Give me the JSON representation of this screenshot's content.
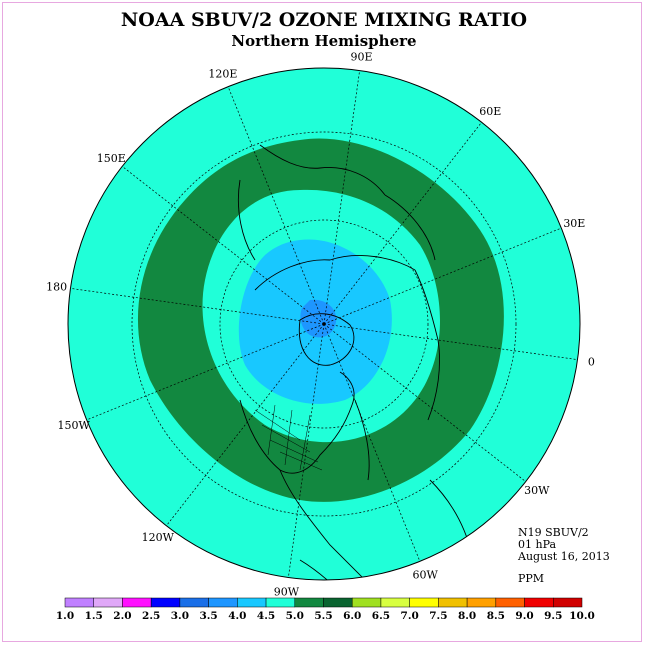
{
  "header": {
    "title": "NOAA SBUV/2 OZONE MIXING RATIO",
    "subtitle": "Northern Hemisphere"
  },
  "longitude_labels": [
    {
      "text": "90E",
      "lon": 90
    },
    {
      "text": "60E",
      "lon": 60
    },
    {
      "text": "30E",
      "lon": 30
    },
    {
      "text": "0",
      "lon": 0
    },
    {
      "text": "30W",
      "lon": -30
    },
    {
      "text": "60W",
      "lon": -60
    },
    {
      "text": "90W",
      "lon": -90
    },
    {
      "text": "120W",
      "lon": -120
    },
    {
      "text": "150W",
      "lon": -150
    },
    {
      "text": "180",
      "lon": 180
    },
    {
      "text": "150E",
      "lon": 150
    },
    {
      "text": "120E",
      "lon": 120
    }
  ],
  "info": {
    "instrument": "N19 SBUV/2",
    "level": "01 hPa",
    "date": "August 16, 2013",
    "units": "PPM"
  },
  "colorbar": {
    "ticks": [
      "1.0",
      "1.5",
      "2.0",
      "2.5",
      "3.0",
      "3.5",
      "4.0",
      "4.5",
      "5.0",
      "5.5",
      "6.0",
      "6.5",
      "7.0",
      "7.5",
      "8.0",
      "8.5",
      "9.0",
      "9.5",
      "10.0"
    ],
    "colors": [
      "#c080ff",
      "#e0a8f8",
      "#ff10ff",
      "#0000ff",
      "#1a6fe8",
      "#1e96ff",
      "#18c8ff",
      "#20ffd8",
      "#128840",
      "#0a6430",
      "#a0e020",
      "#d8ff40",
      "#ffff00",
      "#f0c000",
      "#ffa000",
      "#ff6000",
      "#f00000",
      "#d00000"
    ]
  },
  "field_colors": {
    "background": "#20ffd8",
    "band": "#128840",
    "polar": "#18c8ff",
    "core": "#1e96ff"
  }
}
